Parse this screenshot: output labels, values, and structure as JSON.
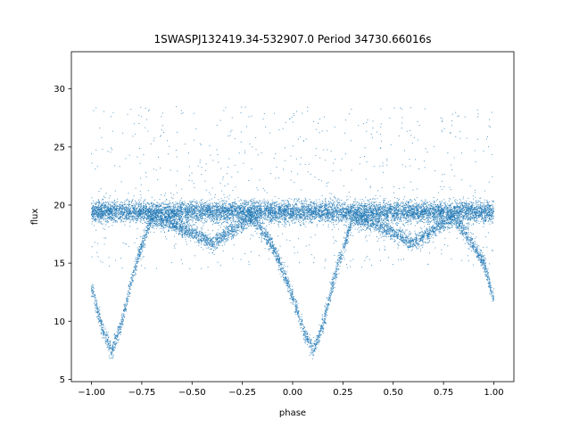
{
  "chart_data": {
    "type": "scatter",
    "title": "1SWASPJ132419.34-532907.0 Period 34730.66016s",
    "xlabel": "phase",
    "ylabel": "flux",
    "xlim": [
      -1.1,
      1.1
    ],
    "ylim": [
      4.8,
      33.2
    ],
    "xticks": [
      -1.0,
      -0.75,
      -0.5,
      -0.25,
      0.0,
      0.25,
      0.5,
      0.75,
      1.0
    ],
    "xtick_labels": [
      "−1.00",
      "−0.75",
      "−0.50",
      "−0.25",
      "0.00",
      "0.25",
      "0.50",
      "0.75",
      "1.00"
    ],
    "yticks": [
      5,
      10,
      15,
      20,
      25,
      30
    ],
    "ytick_labels": [
      "5",
      "10",
      "15",
      "20",
      "25",
      "30"
    ],
    "grid": false,
    "legend": "none",
    "marker_color": "#1f77b4",
    "series": [
      {
        "phase_range": [
          -1.0,
          1.0
        ],
        "baseline_flux": 19.4,
        "primary_minimum": {
          "phase": [
            -0.9,
            0.1
          ],
          "flux": 7.4,
          "half_width": 0.2
        },
        "secondary_minimum": {
          "phase": [
            -0.4,
            0.6
          ],
          "flux": 16.7,
          "half_width": 0.17
        },
        "profile_flux": [
          {
            "x": -1.0,
            "y": 13.0
          },
          {
            "x": -0.95,
            "y": 9.6
          },
          {
            "x": -0.9,
            "y": 7.4
          },
          {
            "x": -0.85,
            "y": 9.8
          },
          {
            "x": -0.8,
            "y": 13.6
          },
          {
            "x": -0.75,
            "y": 16.6
          },
          {
            "x": -0.7,
            "y": 18.8
          },
          {
            "x": -0.6,
            "y": 18.4
          },
          {
            "x": -0.5,
            "y": 17.6
          },
          {
            "x": -0.4,
            "y": 16.7
          },
          {
            "x": -0.3,
            "y": 17.8
          },
          {
            "x": -0.2,
            "y": 19.0
          },
          {
            "x": -0.1,
            "y": 16.5
          },
          {
            "x": 0.0,
            "y": 12.2
          },
          {
            "x": 0.05,
            "y": 9.4
          },
          {
            "x": 0.1,
            "y": 7.4
          },
          {
            "x": 0.15,
            "y": 9.6
          },
          {
            "x": 0.2,
            "y": 13.2
          },
          {
            "x": 0.25,
            "y": 16.2
          },
          {
            "x": 0.3,
            "y": 18.8
          },
          {
            "x": 0.4,
            "y": 18.5
          },
          {
            "x": 0.5,
            "y": 17.6
          },
          {
            "x": 0.6,
            "y": 16.7
          },
          {
            "x": 0.7,
            "y": 17.8
          },
          {
            "x": 0.8,
            "y": 19.0
          },
          {
            "x": 0.9,
            "y": 16.5
          },
          {
            "x": 0.95,
            "y": 15.0
          },
          {
            "x": 1.0,
            "y": 12.0
          }
        ]
      }
    ]
  }
}
